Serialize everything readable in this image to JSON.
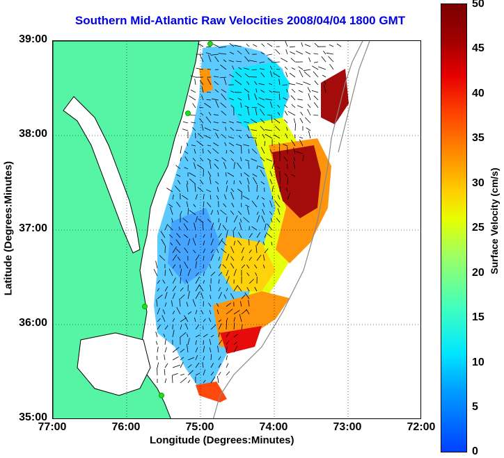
{
  "title": "Southern Mid-Atlantic Raw Velocities 2008/04/04 1800 GMT",
  "axes": {
    "xlabel": "Longitude (Degrees:Minutes)",
    "ylabel": "Latitude (Degrees:Minutes)",
    "x_ticks": [
      "77:00",
      "76:00",
      "75:00",
      "74:00",
      "73:00",
      "72:00"
    ],
    "y_ticks": [
      "39:00",
      "38:00",
      "37:00",
      "36:00",
      "35:00"
    ]
  },
  "colorbar": {
    "label": "Surface Velocity (cm/s)",
    "ticks": [
      "50",
      "45",
      "40",
      "35",
      "30",
      "25",
      "20",
      "15",
      "10",
      "5",
      "0"
    ],
    "min": 0,
    "max": 50
  },
  "colors": {
    "land": "#55f5a5",
    "water": "#ffffff",
    "title": "#0000e6",
    "stations": "#22dd22"
  }
}
